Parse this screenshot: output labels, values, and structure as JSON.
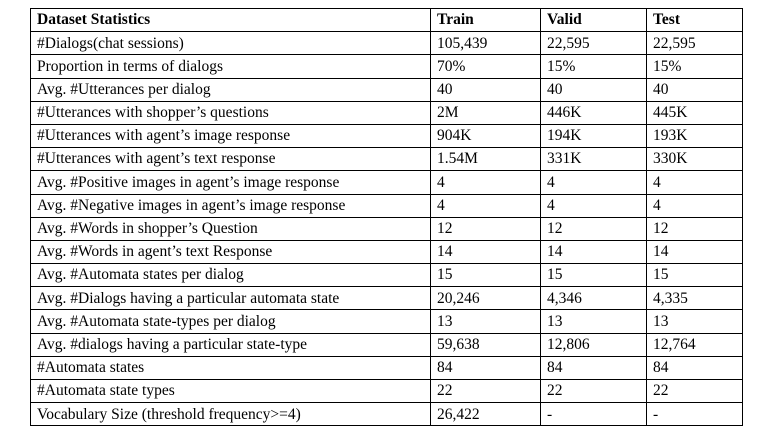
{
  "table": {
    "headers": [
      "Dataset Statistics",
      "Train",
      "Valid",
      "Test"
    ],
    "rows": [
      [
        "#Dialogs(chat sessions)",
        "105,439",
        "22,595",
        "22,595"
      ],
      [
        "Proportion in terms of dialogs",
        "70%",
        "15%",
        "15%"
      ],
      [
        "Avg. #Utterances per dialog",
        "40",
        "40",
        "40"
      ],
      [
        "#Utterances with shopper’s questions",
        "2M",
        "446K",
        "445K"
      ],
      [
        "#Utterances with agent’s image response",
        "904K",
        "194K",
        "193K"
      ],
      [
        "#Utterances with agent’s text response",
        "1.54M",
        "331K",
        "330K"
      ],
      [
        "Avg. #Positive images in agent’s image response",
        "4",
        "4",
        "4"
      ],
      [
        "Avg. #Negative images in agent’s image response",
        "4",
        "4",
        "4"
      ],
      [
        "Avg. #Words in shopper’s Question",
        "12",
        "12",
        "12"
      ],
      [
        "Avg. #Words in agent’s text Response",
        "14",
        "14",
        "14"
      ],
      [
        "Avg. #Automata states per dialog",
        "15",
        "15",
        "15"
      ],
      [
        "Avg. #Dialogs having a particular automata state",
        "20,246",
        "4,346",
        "4,335"
      ],
      [
        "Avg. #Automata state-types per dialog",
        "13",
        "13",
        "13"
      ],
      [
        "Avg. #dialogs having a particular state-type",
        "59,638",
        "12,806",
        "12,764"
      ],
      [
        "#Automata states",
        "84",
        "84",
        "84"
      ],
      [
        "#Automata state types",
        "22",
        "22",
        "22"
      ],
      [
        "Vocabulary Size (threshold frequency>=4)",
        "26,422",
        "-",
        "-"
      ]
    ]
  }
}
